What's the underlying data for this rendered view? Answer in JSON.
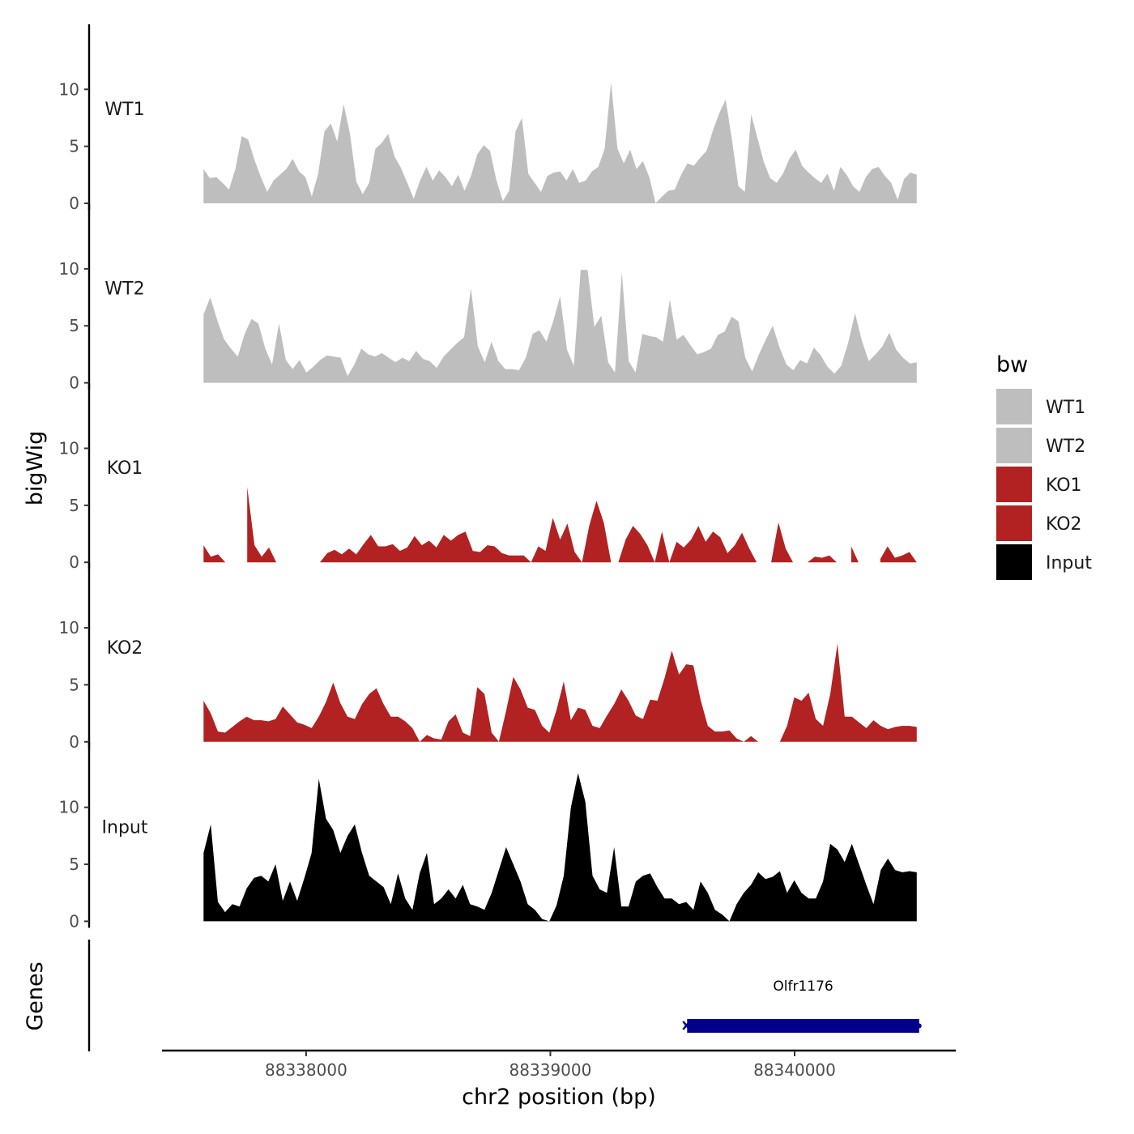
{
  "chart_data": {
    "type": "area",
    "title": "",
    "ylabel": "bigWig",
    "genes_label": "Genes",
    "xlabel": "chr2 position (bp)",
    "x_range": [
      88337580,
      88340500
    ],
    "x_limits": [
      88337410,
      88340660
    ],
    "x_ticks": [
      88338000,
      88339000,
      88340000
    ],
    "x_tick_labels": [
      "88338000",
      "88339000",
      "88340000"
    ],
    "ylim": [
      0,
      14
    ],
    "y_ticks": [
      0,
      5,
      10
    ],
    "y_tick_labels": [
      "0",
      "5",
      "10"
    ],
    "legend": {
      "title": "bw",
      "entries": [
        {
          "label": "WT1",
          "color": "#bebebe"
        },
        {
          "label": "WT2",
          "color": "#bebebe"
        },
        {
          "label": "KO1",
          "color": "#b22222"
        },
        {
          "label": "KO2",
          "color": "#b22222"
        },
        {
          "label": "Input",
          "color": "#000000"
        }
      ]
    },
    "series": [
      {
        "name": "WT1",
        "color": "#bebebe",
        "values": [
          3.0,
          2.2,
          2.3,
          1.8,
          1.2,
          3.0,
          5.9,
          5.6,
          3.8,
          2.3,
          1.0,
          2.0,
          2.5,
          3.0,
          3.9,
          2.8,
          2.3,
          0.6,
          2.6,
          6.3,
          7.0,
          5.4,
          8.7,
          6.1,
          1.9,
          0.8,
          1.8,
          4.8,
          5.3,
          6.1,
          4.1,
          3.1,
          1.8,
          0.4,
          2.0,
          3.2,
          2.0,
          2.9,
          2.3,
          1.5,
          2.5,
          1.1,
          2.4,
          4.3,
          5.1,
          4.6,
          2.0,
          0.2,
          1.1,
          6.3,
          7.5,
          2.6,
          1.8,
          1.0,
          2.4,
          2.7,
          2.8,
          2.0,
          3.0,
          1.8,
          2.0,
          2.8,
          3.2,
          4.8,
          10.6,
          4.8,
          3.5,
          4.7,
          3.0,
          3.7,
          2.3,
          0.0,
          0.6,
          1.1,
          1.2,
          2.5,
          3.5,
          3.3,
          4.0,
          4.6,
          6.4,
          7.9,
          9.1,
          5.5,
          1.5,
          1.0,
          7.8,
          5.7,
          3.6,
          2.2,
          1.8,
          2.6,
          3.9,
          4.7,
          3.3,
          2.7,
          2.2,
          1.8,
          2.6,
          1.1,
          3.2,
          2.5,
          1.5,
          1.0,
          2.3,
          3.0,
          3.2,
          2.4,
          1.8,
          0.3,
          2.1,
          2.7,
          2.5
        ]
      },
      {
        "name": "WT2",
        "color": "#bebebe",
        "values": [
          6.0,
          7.5,
          5.5,
          3.8,
          3.0,
          2.3,
          4.3,
          5.6,
          5.2,
          3.0,
          1.6,
          5.2,
          2.0,
          1.2,
          2.0,
          0.9,
          1.4,
          2.0,
          2.4,
          2.3,
          2.2,
          0.6,
          1.6,
          3.0,
          2.5,
          2.3,
          2.6,
          2.2,
          1.8,
          2.2,
          1.9,
          2.8,
          2.1,
          1.9,
          1.3,
          2.3,
          2.9,
          3.5,
          4.0,
          8.3,
          3.2,
          1.8,
          3.6,
          1.9,
          1.2,
          1.2,
          1.1,
          2.2,
          4.3,
          4.6,
          3.6,
          5.4,
          7.6,
          2.9,
          1.5,
          9.9,
          9.9,
          4.9,
          5.9,
          1.8,
          0.9,
          9.7,
          1.9,
          0.9,
          4.3,
          4.1,
          4.0,
          3.6,
          7.3,
          3.8,
          4.2,
          3.3,
          2.5,
          2.7,
          3.0,
          4.2,
          4.5,
          5.8,
          5.4,
          2.2,
          1.0,
          2.5,
          3.8,
          5.0,
          3.1,
          1.6,
          1.1,
          2.0,
          1.7,
          3.1,
          2.4,
          1.4,
          0.8,
          1.5,
          3.5,
          6.1,
          3.7,
          1.9,
          2.5,
          3.2,
          4.4,
          2.9,
          2.2,
          1.7,
          1.8
        ]
      },
      {
        "name": "KO1",
        "color": "#b22222",
        "values": [
          1.5,
          0.5,
          0.7,
          0.0,
          null,
          null,
          6.6,
          1.5,
          0.5,
          1.3,
          0.0,
          null,
          null,
          null,
          null,
          null,
          0.0,
          0.8,
          1.1,
          0.7,
          1.2,
          0.7,
          1.6,
          2.4,
          1.4,
          1.4,
          1.6,
          1.0,
          1.3,
          2.3,
          1.5,
          1.9,
          1.3,
          2.4,
          1.9,
          2.4,
          2.7,
          1.0,
          0.9,
          1.5,
          1.4,
          0.8,
          0.6,
          0.6,
          0.6,
          0.0,
          1.4,
          1.0,
          3.9,
          2.0,
          3.4,
          0.9,
          0.0,
          3.2,
          5.4,
          3.5,
          0.0,
          0.0,
          2.0,
          3.2,
          2.5,
          1.5,
          0.0,
          2.7,
          0.0,
          1.8,
          1.3,
          2.0,
          3.2,
          1.8,
          2.7,
          2.2,
          0.8,
          1.5,
          2.6,
          1.2,
          0.0,
          null,
          0.0,
          3.5,
          1.2,
          0.0,
          null,
          0.0,
          0.5,
          0.4,
          0.6,
          0.0,
          null,
          1.4,
          0.0,
          null,
          null,
          0.3,
          1.4,
          0.4,
          0.6,
          0.9,
          0.0
        ]
      },
      {
        "name": "KO2",
        "color": "#b22222",
        "values": [
          3.6,
          2.5,
          0.9,
          0.8,
          1.3,
          1.8,
          2.2,
          1.9,
          1.9,
          1.8,
          2.0,
          3.1,
          2.4,
          1.7,
          1.5,
          1.2,
          2.2,
          3.5,
          5.2,
          3.4,
          2.2,
          2.0,
          3.3,
          4.2,
          4.7,
          3.3,
          2.2,
          2.2,
          1.8,
          1.2,
          0.0,
          0.6,
          0.3,
          0.2,
          1.8,
          2.4,
          0.8,
          0.5,
          4.8,
          4.2,
          0.8,
          0.0,
          2.7,
          5.7,
          4.6,
          3.0,
          2.8,
          1.4,
          0.8,
          2.8,
          5.3,
          1.9,
          3.0,
          2.8,
          1.4,
          1.2,
          2.3,
          3.3,
          4.6,
          3.6,
          2.3,
          2.0,
          3.7,
          3.6,
          5.6,
          8.0,
          5.9,
          6.8,
          6.7,
          3.7,
          1.4,
          0.9,
          0.9,
          1.0,
          0.3,
          0.0,
          0.5,
          0.0,
          null,
          null,
          0.0,
          1.4,
          3.9,
          3.6,
          4.3,
          2.0,
          1.4,
          4.2,
          8.6,
          2.2,
          2.2,
          1.7,
          1.2,
          1.9,
          1.4,
          1.1,
          1.3,
          1.4,
          1.4,
          1.3
        ]
      },
      {
        "name": "Input",
        "color": "#000000",
        "values": [
          6.0,
          8.5,
          1.7,
          0.8,
          1.5,
          1.3,
          2.9,
          3.8,
          4.0,
          3.5,
          5.0,
          1.8,
          3.5,
          1.8,
          3.8,
          6.0,
          12.5,
          9.0,
          8.0,
          6.0,
          7.5,
          8.5,
          6.0,
          4.0,
          3.5,
          3.0,
          1.5,
          4.2,
          2.0,
          1.0,
          4.2,
          6.0,
          1.5,
          2.0,
          2.8,
          2.0,
          3.2,
          1.5,
          1.3,
          1.0,
          2.5,
          4.5,
          6.5,
          5.0,
          3.5,
          1.5,
          1.0,
          0.2,
          0.0,
          1.4,
          4.0,
          10.0,
          13.0,
          10.5,
          4.0,
          2.8,
          2.5,
          6.5,
          1.3,
          1.3,
          3.5,
          4.0,
          4.2,
          3.0,
          2.0,
          2.0,
          1.5,
          1.7,
          1.0,
          3.5,
          2.5,
          1.0,
          0.6,
          0.0,
          1.5,
          2.5,
          3.2,
          4.3,
          3.7,
          3.9,
          4.4,
          2.5,
          3.6,
          2.5,
          2.0,
          2.0,
          3.5,
          6.8,
          6.3,
          5.2,
          6.8,
          5.0,
          3.2,
          1.5,
          4.5,
          5.5,
          4.5,
          4.3,
          4.4,
          4.3
        ]
      }
    ],
    "genes": [
      {
        "name": "Olfr1176",
        "start": 88339560,
        "end": 88340510,
        "strand": "-",
        "color": "#00008b"
      }
    ]
  }
}
